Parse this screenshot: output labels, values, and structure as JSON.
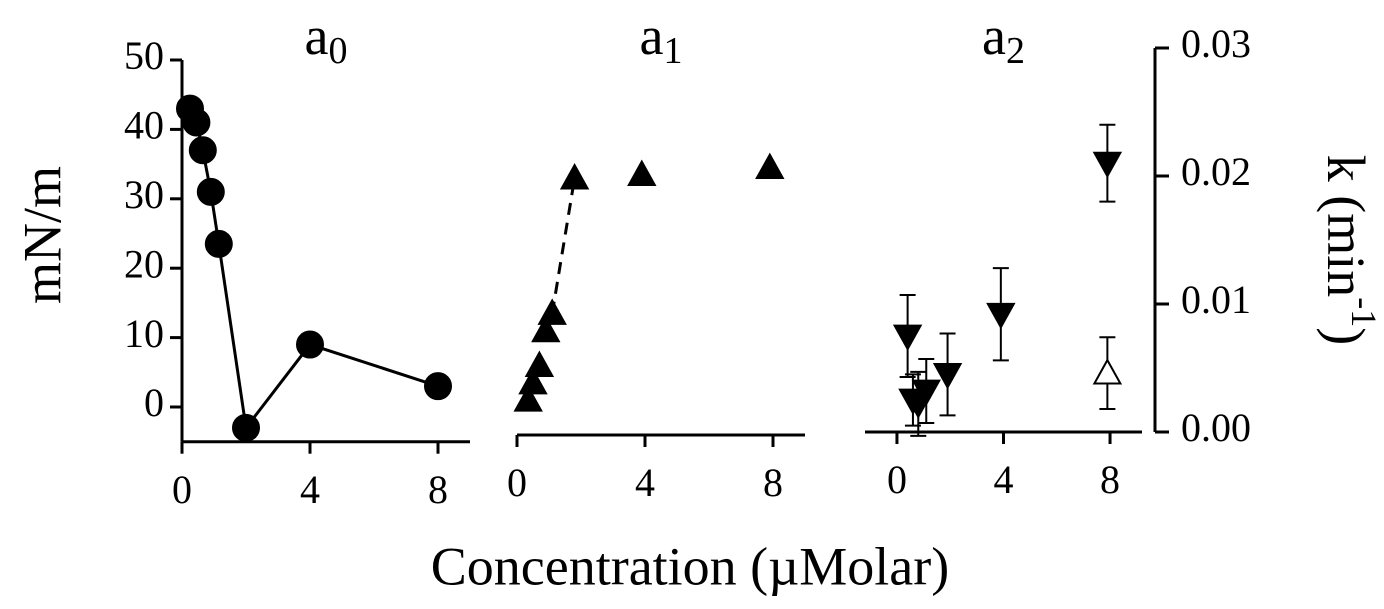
{
  "xlabel": "Concentration (µMolar)",
  "chart_data": [
    {
      "type": "scatter",
      "title": {
        "base": "a",
        "sub": "0"
      },
      "ylabel": "mN/m",
      "xlim": [
        0,
        9
      ],
      "xticks": [
        0,
        4,
        8
      ],
      "ylim": [
        -5,
        50
      ],
      "yticks": [
        0,
        10,
        20,
        30,
        40,
        50
      ],
      "series": [
        {
          "marker": "circle",
          "color": "#000000",
          "line": "solid",
          "x": [
            0.25,
            0.45,
            0.65,
            0.9,
            1.15,
            2,
            4,
            8
          ],
          "values": [
            43,
            41,
            37,
            31,
            23.5,
            -3,
            9,
            3
          ]
        }
      ]
    },
    {
      "type": "scatter",
      "title": {
        "base": "a",
        "sub": "1"
      },
      "xlim": [
        0,
        9
      ],
      "xticks": [
        0,
        4,
        8
      ],
      "ylim": [
        -4,
        50
      ],
      "series": [
        {
          "marker": "triangle-up",
          "color": "#000000",
          "line": "dashed",
          "line_points": [
            4,
            5
          ],
          "x": [
            0.35,
            0.5,
            0.7,
            0.9,
            1.1,
            1.8,
            3.9,
            7.9
          ],
          "values": [
            1,
            3.5,
            6,
            11,
            13.5,
            33,
            33.5,
            34.5
          ]
        }
      ]
    },
    {
      "type": "scatter",
      "title": {
        "base": "a",
        "sub": "2"
      },
      "y2label": {
        "base": "k (min",
        "sup": "-1",
        "end": ")"
      },
      "xlim": [
        -1.2,
        9.2
      ],
      "xticks": [
        0,
        4,
        8
      ],
      "y2lim": [
        0,
        0.03
      ],
      "y2ticks": [
        {
          "value": 0,
          "label": "0.00"
        },
        0.01,
        0.02,
        0.03
      ],
      "series": [
        {
          "marker": "triangle-down",
          "color": "#000000",
          "axis": "y2",
          "x": [
            0.4,
            0.6,
            0.8,
            1.1,
            1.9,
            3.9,
            7.9
          ],
          "values": [
            0.0075,
            0.0025,
            0.0022,
            0.0032,
            0.0045,
            0.0092,
            0.021
          ],
          "errors": [
            0.0032,
            0.002,
            0.0025,
            0.0025,
            0.0032,
            0.0036,
            0.003
          ]
        },
        {
          "marker": "triangle-up",
          "color": "#000000",
          "open": true,
          "axis": "y2",
          "x": [
            7.9
          ],
          "values": [
            0.0046
          ],
          "errors": [
            0.0028
          ]
        }
      ]
    }
  ]
}
